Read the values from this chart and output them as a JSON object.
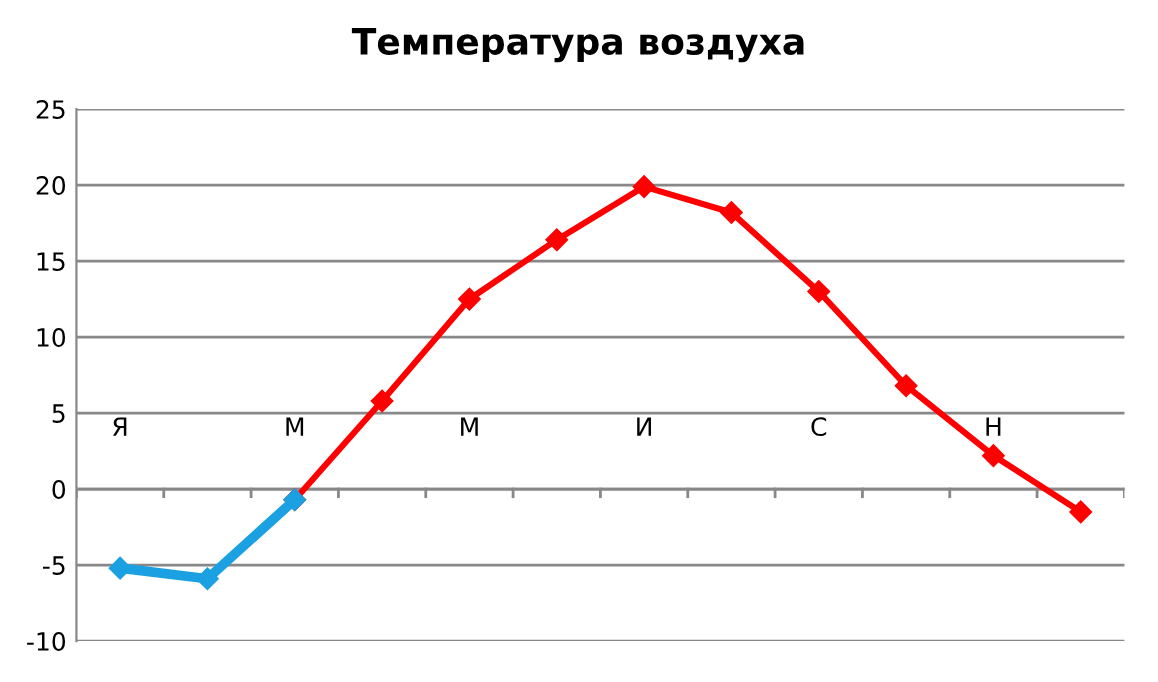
{
  "chart_data": {
    "type": "line",
    "title": "Температура воздуха",
    "categories": [
      "Я",
      null,
      "М",
      null,
      "М",
      null,
      "И",
      null,
      "С",
      null,
      "Н",
      null
    ],
    "series": [
      {
        "color": "#ff0000",
        "values": [
          null,
          null,
          -0.7,
          5.8,
          12.5,
          16.4,
          19.9,
          18.2,
          13.0,
          6.8,
          2.2,
          -1.5
        ]
      },
      {
        "color": "#1ba1e2",
        "values": [
          -5.2,
          -5.9,
          -0.7,
          null,
          null,
          null,
          null,
          null,
          null,
          null,
          null,
          null
        ]
      }
    ],
    "ylim": [
      -10,
      25
    ],
    "yticks": [
      -10,
      -5,
      0,
      5,
      10,
      15,
      20,
      25
    ],
    "grid": "y",
    "marker": "diamond",
    "line_style": "solid",
    "legend": false
  }
}
